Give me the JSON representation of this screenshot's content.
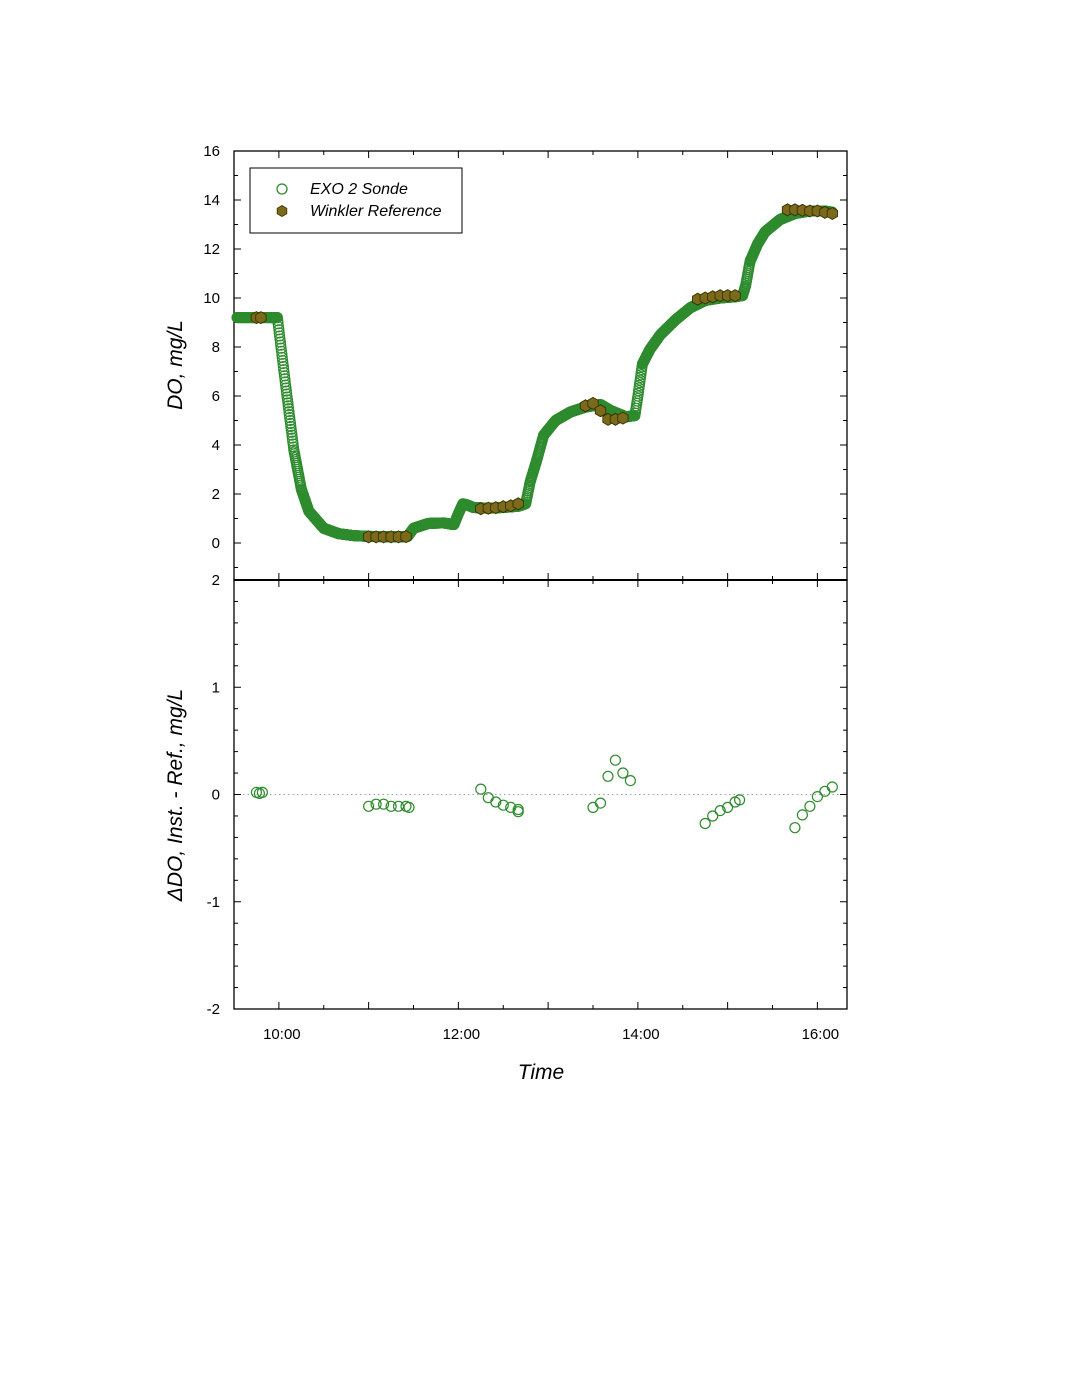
{
  "chart_data": [
    {
      "type": "scatter",
      "panel": "top",
      "title": "",
      "xlabel": "",
      "ylabel": "DO, mg/L",
      "xlim_hours": [
        9.5,
        16.33
      ],
      "ylim": [
        -1.5,
        16
      ],
      "yticks": [
        0,
        2,
        4,
        6,
        8,
        10,
        12,
        14,
        16
      ],
      "ytick_labels": [
        "0",
        "2",
        "4",
        "6",
        "8",
        "10",
        "12",
        "14",
        "16"
      ],
      "grid": false,
      "legend": {
        "placement": "top-left",
        "entries": [
          {
            "label": "EXO 2 Sonde",
            "marker": "open-circle",
            "color": "#2e8b2e"
          },
          {
            "label": "Winkler Reference",
            "marker": "filled-hexagon",
            "color": "#7a6a1a"
          }
        ]
      },
      "series": [
        {
          "name": "EXO 2 Sonde",
          "marker": "open-circle",
          "color": "#2e8b2e",
          "curve_knots_x": [
            "9:32",
            "9:59",
            "10:00",
            "10:05",
            "10:10",
            "10:15",
            "10:20",
            "10:30",
            "10:40",
            "10:50",
            "11:00",
            "11:20",
            "11:26",
            "11:30",
            "11:40",
            "11:50",
            "11:57",
            "12:00",
            "12:03",
            "12:06",
            "12:10",
            "12:20",
            "12:30",
            "12:40",
            "12:45",
            "12:48",
            "12:52",
            "12:57",
            "13:05",
            "13:15",
            "13:25",
            "13:35",
            "13:42",
            "13:52",
            "13:58",
            "14:00",
            "14:03",
            "14:08",
            "14:15",
            "14:25",
            "14:35",
            "14:45",
            "14:55",
            "15:05",
            "15:10",
            "15:12",
            "15:15",
            "15:20",
            "15:25",
            "15:35",
            "15:45",
            "15:55",
            "16:05",
            "16:10"
          ],
          "curve_knots_y": [
            9.2,
            9.2,
            8.7,
            6.2,
            3.8,
            2.2,
            1.3,
            0.6,
            0.38,
            0.3,
            0.27,
            0.25,
            0.26,
            0.6,
            0.8,
            0.82,
            0.75,
            1.2,
            1.6,
            1.55,
            1.45,
            1.42,
            1.45,
            1.5,
            1.6,
            2.5,
            3.3,
            4.4,
            5.0,
            5.35,
            5.55,
            5.65,
            5.4,
            5.15,
            5.2,
            6.0,
            7.3,
            7.9,
            8.5,
            9.1,
            9.6,
            9.9,
            10.0,
            10.05,
            10.1,
            10.5,
            11.5,
            12.2,
            12.7,
            13.2,
            13.45,
            13.55,
            13.55,
            13.5
          ]
        },
        {
          "name": "Winkler Reference",
          "marker": "filled-hexagon",
          "color": "#7a6a1a",
          "x": [
            "9:45",
            "9:48",
            "11:00",
            "11:05",
            "11:10",
            "11:15",
            "11:20",
            "11:25",
            "12:15",
            "12:20",
            "12:25",
            "12:30",
            "12:35",
            "12:40",
            "13:25",
            "13:30",
            "13:35",
            "13:40",
            "13:45",
            "13:50",
            "14:40",
            "14:45",
            "14:50",
            "14:55",
            "15:00",
            "15:05",
            "15:40",
            "15:45",
            "15:50",
            "15:55",
            "16:00",
            "16:05",
            "16:10"
          ],
          "y": [
            9.2,
            9.2,
            0.25,
            0.25,
            0.25,
            0.25,
            0.25,
            0.26,
            1.4,
            1.42,
            1.44,
            1.48,
            1.52,
            1.6,
            5.6,
            5.7,
            5.4,
            5.05,
            5.05,
            5.1,
            9.95,
            10.0,
            10.05,
            10.1,
            10.1,
            10.1,
            13.6,
            13.6,
            13.58,
            13.55,
            13.55,
            13.5,
            13.45
          ]
        }
      ]
    },
    {
      "type": "scatter",
      "panel": "bottom",
      "title": "",
      "xlabel": "Time",
      "ylabel": "ΔDO, Inst. - Ref., mg/L",
      "xlim_hours": [
        9.5,
        16.33
      ],
      "ylim": [
        -2,
        2
      ],
      "yticks": [
        -2,
        -1,
        0,
        1,
        2
      ],
      "ytick_labels": [
        "-2",
        "-1",
        "0",
        "1",
        "2"
      ],
      "xticks": [
        "10:00",
        "12:00",
        "14:00",
        "16:00"
      ],
      "reference_line_y": 0,
      "grid": false,
      "series": [
        {
          "name": "ΔDO",
          "marker": "open-circle",
          "color": "#2e8b2e",
          "x": [
            "9:45",
            "9:47",
            "9:49",
            "11:00",
            "11:05",
            "11:10",
            "11:15",
            "11:20",
            "11:25",
            "11:27",
            "12:15",
            "12:20",
            "12:25",
            "12:30",
            "12:35",
            "12:40",
            "12:40",
            "13:30",
            "13:35",
            "13:40",
            "13:45",
            "13:50",
            "13:55",
            "14:45",
            "14:50",
            "14:55",
            "15:00",
            "15:05",
            "15:08",
            "15:45",
            "15:50",
            "15:55",
            "16:00",
            "16:05",
            "16:10"
          ],
          "y": [
            0.02,
            0.01,
            0.02,
            -0.11,
            -0.09,
            -0.09,
            -0.11,
            -0.11,
            -0.11,
            -0.12,
            0.05,
            -0.03,
            -0.07,
            -0.1,
            -0.12,
            -0.14,
            -0.16,
            -0.12,
            -0.08,
            0.17,
            0.32,
            0.2,
            0.13,
            -0.27,
            -0.2,
            -0.15,
            -0.12,
            -0.07,
            -0.05,
            -0.31,
            -0.19,
            -0.11,
            -0.02,
            0.03,
            0.07
          ]
        }
      ]
    }
  ]
}
